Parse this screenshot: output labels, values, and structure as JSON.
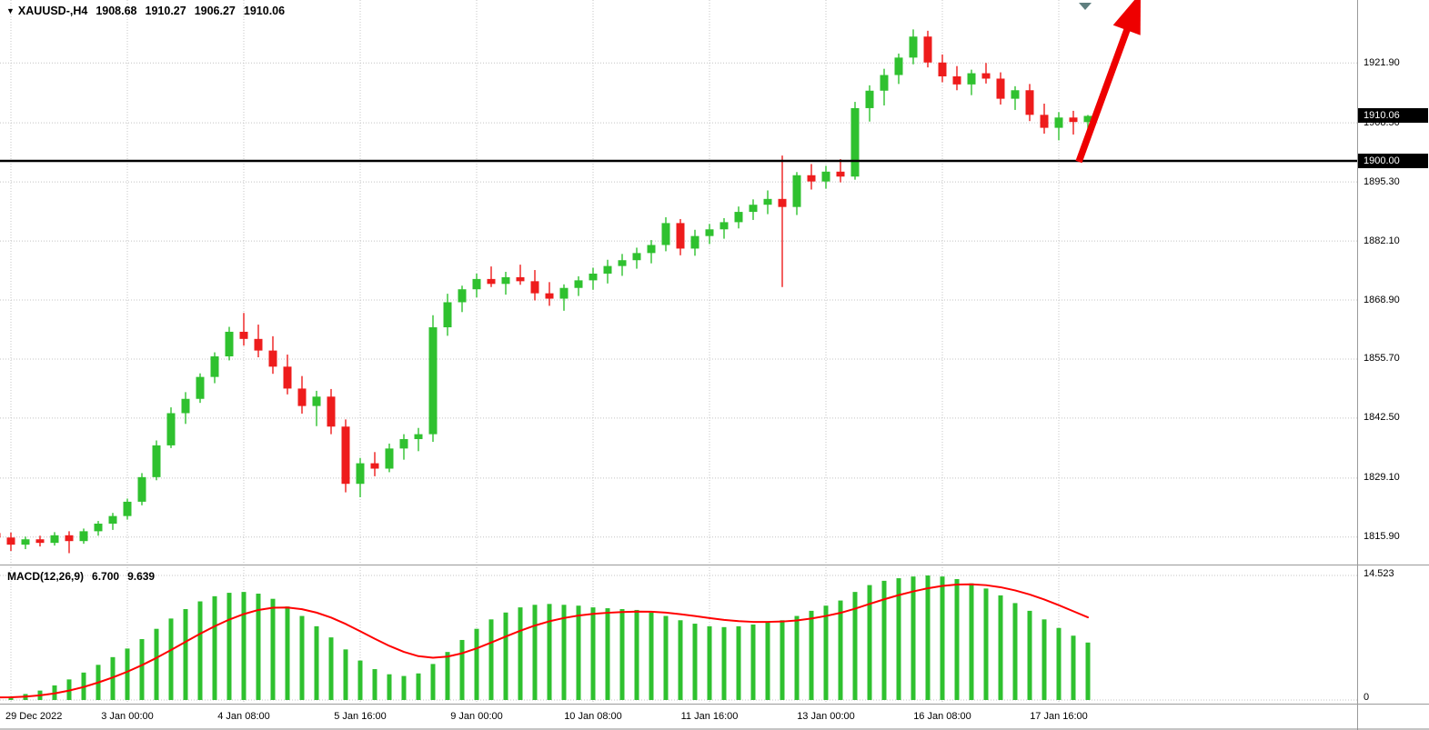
{
  "header": {
    "marker_icon": "▼",
    "symbol_tf": "XAUUSD-,H4",
    "open": "1908.68",
    "high": "1910.27",
    "low": "1906.27",
    "close": "1910.06"
  },
  "price_axis": {
    "current_price_badge": "1910.06",
    "level_badge": "1900.00"
  },
  "macd_panel": {
    "title": "MACD(12,26,9)",
    "main_value": "6.700",
    "signal_value": "9.639",
    "scale_max": "14.523",
    "scale_min": "0"
  },
  "annotations": {
    "trend_arrow": {
      "shape": "arrow-up-right",
      "color": "#ee0000"
    },
    "horizontal_line": {
      "price": 1900.0,
      "color": "#000000"
    },
    "chart_shift_marker": {
      "shape": "triangle-down",
      "color": "#5f7f7f"
    }
  },
  "colors": {
    "up": "#2fc12f",
    "down": "#ee1c1c",
    "signal": "#ff0000",
    "grid": "#c4c4c4",
    "separator": "#9a9a9a",
    "line_1900": "#000000",
    "background": "#ffffff"
  },
  "chart_data": {
    "type": "candlestick",
    "symbol": "XAUUSD-",
    "timeframe": "H4",
    "ohlc_format": [
      "open",
      "high",
      "low",
      "close"
    ],
    "y_axis_range": [
      1809.5,
      1936.0
    ],
    "grid": true,
    "y_ticks": [
      "1921.90",
      "1908.50",
      "1895.30",
      "1882.10",
      "1868.90",
      "1855.70",
      "1842.50",
      "1829.10",
      "1815.90"
    ],
    "x_ticks": [
      {
        "bar": 1,
        "label": "29 Dec 2022"
      },
      {
        "bar": 9,
        "label": "3 Jan 00:00"
      },
      {
        "bar": 17,
        "label": "4 Jan 08:00"
      },
      {
        "bar": 25,
        "label": "5 Jan 16:00"
      },
      {
        "bar": 33,
        "label": "9 Jan 00:00"
      },
      {
        "bar": 41,
        "label": "10 Jan 08:00"
      },
      {
        "bar": 49,
        "label": "11 Jan 16:00"
      },
      {
        "bar": 57,
        "label": "13 Jan 00:00"
      },
      {
        "bar": 65,
        "label": "16 Jan 08:00"
      },
      {
        "bar": 73,
        "label": "17 Jan 16:00"
      }
    ],
    "candles": [
      [
        1816.8,
        1817.5,
        1813.9,
        1815.8
      ],
      [
        1815.8,
        1816.9,
        1812.8,
        1814.2
      ],
      [
        1814.2,
        1816.0,
        1813.2,
        1815.4
      ],
      [
        1815.4,
        1816.2,
        1813.8,
        1814.6
      ],
      [
        1814.6,
        1817.0,
        1814.0,
        1816.3
      ],
      [
        1816.3,
        1817.2,
        1812.3,
        1815.0
      ],
      [
        1815.0,
        1817.8,
        1814.4,
        1817.2
      ],
      [
        1817.2,
        1819.5,
        1816.2,
        1818.9
      ],
      [
        1818.9,
        1821.3,
        1817.5,
        1820.6
      ],
      [
        1820.6,
        1824.5,
        1819.8,
        1823.8
      ],
      [
        1823.8,
        1830.2,
        1823.0,
        1829.3
      ],
      [
        1829.3,
        1837.5,
        1828.6,
        1836.4
      ],
      [
        1836.4,
        1844.9,
        1835.8,
        1843.6
      ],
      [
        1843.6,
        1848.3,
        1841.2,
        1846.8
      ],
      [
        1846.8,
        1852.5,
        1845.9,
        1851.7
      ],
      [
        1851.7,
        1857.2,
        1850.3,
        1856.3
      ],
      [
        1856.3,
        1862.9,
        1855.4,
        1861.8
      ],
      [
        1861.8,
        1866.0,
        1858.7,
        1860.2
      ],
      [
        1860.2,
        1863.4,
        1856.1,
        1857.6
      ],
      [
        1857.6,
        1860.8,
        1852.4,
        1854.0
      ],
      [
        1854.0,
        1856.7,
        1847.8,
        1849.1
      ],
      [
        1849.1,
        1851.9,
        1843.5,
        1845.2
      ],
      [
        1845.2,
        1848.6,
        1840.7,
        1847.3
      ],
      [
        1847.3,
        1849.0,
        1838.9,
        1840.6
      ],
      [
        1840.6,
        1842.2,
        1825.9,
        1827.8
      ],
      [
        1827.8,
        1833.6,
        1824.8,
        1832.4
      ],
      [
        1832.4,
        1834.9,
        1829.5,
        1831.2
      ],
      [
        1831.2,
        1836.8,
        1830.4,
        1835.7
      ],
      [
        1835.7,
        1838.9,
        1833.2,
        1837.8
      ],
      [
        1837.8,
        1840.3,
        1835.1,
        1838.9
      ],
      [
        1838.9,
        1865.5,
        1837.2,
        1862.8
      ],
      [
        1862.8,
        1870.3,
        1860.9,
        1868.4
      ],
      [
        1868.4,
        1872.1,
        1866.2,
        1871.3
      ],
      [
        1871.3,
        1874.8,
        1869.5,
        1873.6
      ],
      [
        1873.6,
        1876.4,
        1871.8,
        1872.5
      ],
      [
        1872.5,
        1875.2,
        1870.1,
        1874.0
      ],
      [
        1874.0,
        1876.8,
        1872.3,
        1873.1
      ],
      [
        1873.1,
        1875.6,
        1868.8,
        1870.4
      ],
      [
        1870.4,
        1872.9,
        1867.6,
        1869.2
      ],
      [
        1869.2,
        1872.4,
        1866.5,
        1871.6
      ],
      [
        1871.6,
        1874.2,
        1869.8,
        1873.3
      ],
      [
        1873.3,
        1876.1,
        1871.2,
        1874.8
      ],
      [
        1874.8,
        1877.9,
        1872.6,
        1876.5
      ],
      [
        1876.5,
        1879.2,
        1874.3,
        1877.8
      ],
      [
        1877.8,
        1880.6,
        1875.9,
        1879.4
      ],
      [
        1879.4,
        1882.3,
        1877.1,
        1881.2
      ],
      [
        1881.2,
        1887.4,
        1879.8,
        1886.1
      ],
      [
        1886.1,
        1887.0,
        1878.9,
        1880.4
      ],
      [
        1880.4,
        1884.6,
        1878.8,
        1883.2
      ],
      [
        1883.2,
        1885.9,
        1881.4,
        1884.7
      ],
      [
        1884.7,
        1887.2,
        1882.6,
        1886.3
      ],
      [
        1886.3,
        1889.8,
        1884.9,
        1888.6
      ],
      [
        1888.6,
        1891.4,
        1886.8,
        1890.2
      ],
      [
        1890.2,
        1893.4,
        1888.1,
        1891.5
      ],
      [
        1891.5,
        1901.2,
        1871.8,
        1889.7
      ],
      [
        1889.7,
        1897.5,
        1887.9,
        1896.8
      ],
      [
        1896.8,
        1899.3,
        1893.6,
        1895.4
      ],
      [
        1895.4,
        1898.9,
        1893.8,
        1897.6
      ],
      [
        1897.6,
        1900.4,
        1895.2,
        1896.5
      ],
      [
        1896.5,
        1913.2,
        1895.8,
        1911.8
      ],
      [
        1911.8,
        1916.9,
        1908.8,
        1915.7
      ],
      [
        1915.7,
        1920.6,
        1912.4,
        1919.2
      ],
      [
        1919.2,
        1924.0,
        1917.2,
        1923.1
      ],
      [
        1923.1,
        1929.4,
        1921.6,
        1927.8
      ],
      [
        1927.8,
        1929.1,
        1920.9,
        1922.0
      ],
      [
        1922.0,
        1923.8,
        1917.6,
        1918.9
      ],
      [
        1918.9,
        1921.2,
        1915.8,
        1917.1
      ],
      [
        1917.1,
        1920.4,
        1914.7,
        1919.6
      ],
      [
        1919.6,
        1921.9,
        1917.3,
        1918.4
      ],
      [
        1918.4,
        1919.8,
        1912.6,
        1913.9
      ],
      [
        1913.9,
        1916.7,
        1911.4,
        1915.8
      ],
      [
        1915.8,
        1917.2,
        1908.9,
        1910.3
      ],
      [
        1910.3,
        1912.8,
        1906.1,
        1907.4
      ],
      [
        1907.4,
        1910.9,
        1904.6,
        1909.7
      ],
      [
        1909.7,
        1911.2,
        1905.9,
        1908.7
      ],
      [
        1908.68,
        1910.27,
        1906.27,
        1910.06
      ]
    ],
    "macd": {
      "params": "12,26,9",
      "range": [
        0,
        14.523
      ],
      "main": [
        0.3,
        0.4,
        0.7,
        1.1,
        1.7,
        2.4,
        3.2,
        4.1,
        5.0,
        6.0,
        7.1,
        8.3,
        9.5,
        10.6,
        11.5,
        12.1,
        12.5,
        12.6,
        12.4,
        11.8,
        10.9,
        9.8,
        8.6,
        7.3,
        5.9,
        4.6,
        3.6,
        3.0,
        2.8,
        3.1,
        4.2,
        5.6,
        7.0,
        8.3,
        9.4,
        10.2,
        10.8,
        11.1,
        11.2,
        11.1,
        11.0,
        10.8,
        10.7,
        10.6,
        10.5,
        10.2,
        9.8,
        9.3,
        8.9,
        8.6,
        8.5,
        8.6,
        8.8,
        9.1,
        9.3,
        9.8,
        10.4,
        11.0,
        11.6,
        12.6,
        13.4,
        13.9,
        14.2,
        14.4,
        14.52,
        14.4,
        14.1,
        13.6,
        13.0,
        12.2,
        11.3,
        10.4,
        9.4,
        8.4,
        7.5,
        6.7
      ],
      "signal": [
        0.3,
        0.32,
        0.4,
        0.54,
        0.77,
        1.1,
        1.52,
        2.04,
        2.63,
        3.3,
        4.06,
        4.91,
        5.83,
        6.78,
        7.72,
        8.6,
        9.38,
        10.02,
        10.5,
        10.76,
        10.79,
        10.59,
        10.19,
        9.61,
        8.87,
        8.02,
        7.14,
        6.31,
        5.61,
        5.11,
        4.93,
        5.06,
        5.45,
        6.02,
        6.7,
        7.4,
        8.08,
        8.68,
        9.18,
        9.56,
        9.85,
        10.04,
        10.17,
        10.26,
        10.31,
        10.29,
        10.19,
        10.01,
        9.79,
        9.55,
        9.34,
        9.19,
        9.11,
        9.11,
        9.15,
        9.28,
        9.5,
        9.8,
        10.16,
        10.65,
        11.2,
        11.74,
        12.23,
        12.66,
        13.03,
        13.3,
        13.46,
        13.49,
        13.39,
        13.15,
        12.78,
        12.3,
        11.72,
        11.06,
        10.35,
        9.64
      ]
    }
  }
}
